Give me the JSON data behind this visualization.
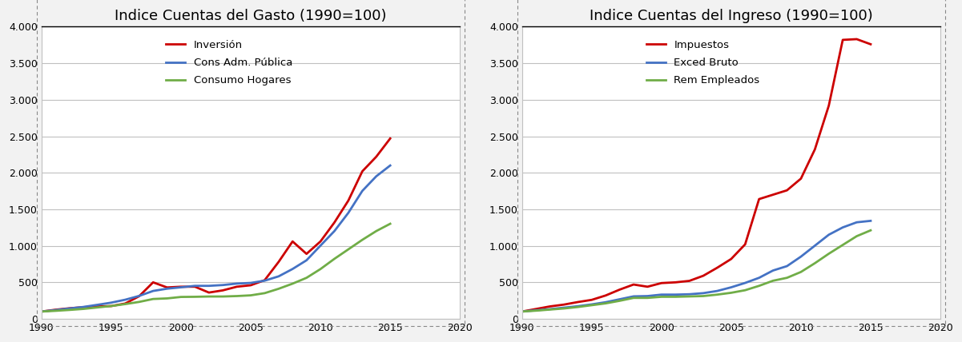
{
  "left_title": "Indice Cuentas del Gasto (1990=100)",
  "right_title": "Indice Cuentas del Ingreso (1990=100)",
  "years": [
    1990,
    1991,
    1992,
    1993,
    1994,
    1995,
    1996,
    1997,
    1998,
    1999,
    2000,
    2001,
    2002,
    2003,
    2004,
    2005,
    2006,
    2007,
    2008,
    2009,
    2010,
    2011,
    2012,
    2013,
    2014,
    2015
  ],
  "left": {
    "inversion": [
      100,
      125,
      145,
      160,
      170,
      175,
      210,
      310,
      500,
      430,
      440,
      440,
      360,
      390,
      440,
      460,
      530,
      780,
      1060,
      890,
      1060,
      1320,
      1620,
      2020,
      2220,
      2470
    ],
    "cons_adm": [
      100,
      120,
      142,
      163,
      192,
      222,
      262,
      314,
      382,
      413,
      432,
      452,
      452,
      463,
      483,
      492,
      523,
      582,
      683,
      802,
      1003,
      1202,
      1452,
      1752,
      1952,
      2100
    ],
    "cons_hogares": [
      100,
      110,
      122,
      136,
      156,
      176,
      202,
      232,
      272,
      280,
      300,
      302,
      306,
      306,
      312,
      322,
      352,
      412,
      482,
      562,
      682,
      822,
      952,
      1082,
      1202,
      1302
    ]
  },
  "right": {
    "impuestos": [
      100,
      135,
      170,
      195,
      230,
      260,
      320,
      400,
      470,
      440,
      490,
      500,
      520,
      590,
      700,
      820,
      1020,
      1640,
      1700,
      1760,
      1920,
      2320,
      2920,
      3820,
      3830,
      3760
    ],
    "exced_bruto": [
      100,
      118,
      133,
      153,
      173,
      198,
      228,
      268,
      308,
      312,
      332,
      332,
      337,
      352,
      382,
      432,
      492,
      562,
      662,
      722,
      852,
      1002,
      1152,
      1252,
      1322,
      1342
    ],
    "rem_empleados": [
      100,
      112,
      127,
      142,
      162,
      187,
      212,
      247,
      287,
      287,
      302,
      302,
      307,
      312,
      332,
      357,
      392,
      452,
      522,
      562,
      642,
      762,
      892,
      1012,
      1132,
      1212
    ]
  },
  "left_colors": [
    "#cc0000",
    "#4472c4",
    "#70ad47"
  ],
  "right_colors": [
    "#cc0000",
    "#4472c4",
    "#70ad47"
  ],
  "left_labels": [
    "Inversión",
    "Cons Adm. Pública",
    "Consumo Hogares"
  ],
  "right_labels": [
    "Impuestos",
    "Exced Bruto",
    "Rem Empleados"
  ],
  "xlim": [
    1990,
    2020
  ],
  "ylim": [
    0,
    4000
  ],
  "yticks": [
    0,
    500,
    1000,
    1500,
    2000,
    2500,
    3000,
    3500,
    4000
  ],
  "xticks": [
    1990,
    1995,
    2000,
    2005,
    2010,
    2015,
    2020
  ],
  "bg_color": "#f2f2f2",
  "plot_bg": "#ffffff",
  "grid_color": "#c0c0c0",
  "title_fontsize": 13,
  "tick_fontsize": 9,
  "legend_fontsize": 9.5,
  "line_width": 2.0
}
